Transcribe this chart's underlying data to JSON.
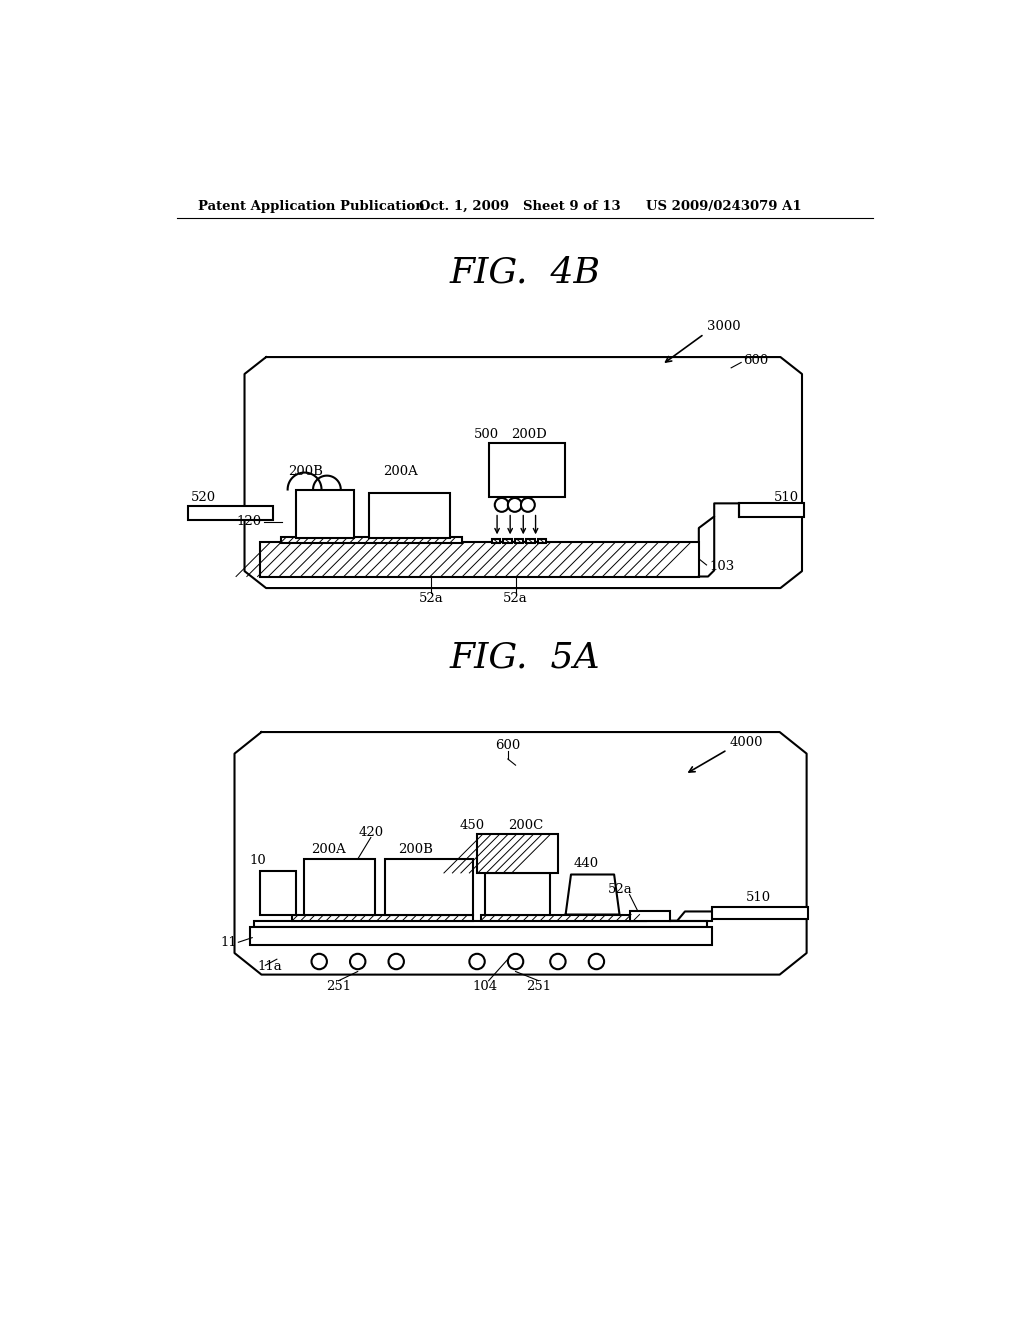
{
  "bg_color": "#ffffff",
  "header_text": "Patent Application Publication",
  "header_date": "Oct. 1, 2009",
  "header_sheet": "Sheet 9 of 13",
  "header_patent": "US 2009/0243079 A1",
  "fig1_title": "FIG.  4B",
  "fig2_title": "FIG.  5A",
  "line_color": "#000000"
}
